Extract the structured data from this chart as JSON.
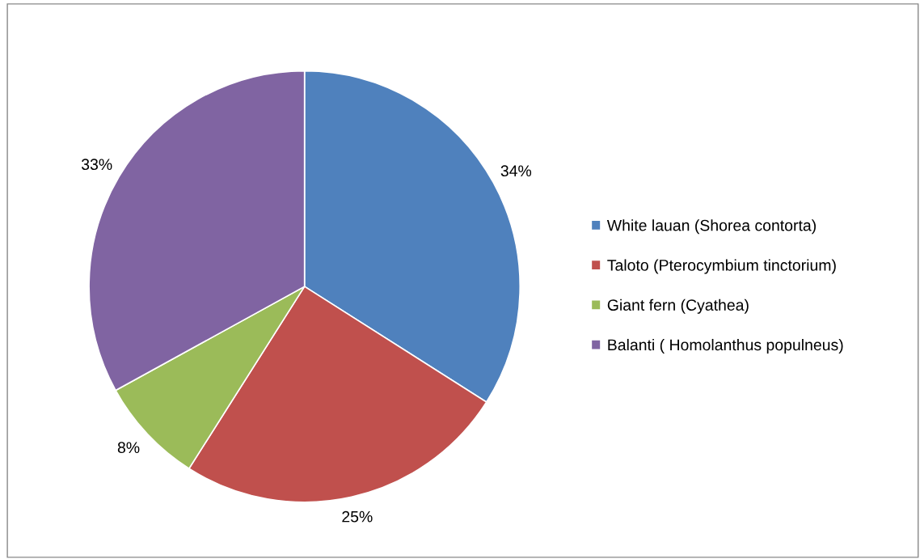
{
  "chart_data": {
    "type": "pie",
    "categories": [
      "White lauan (Shorea contorta)",
      "Taloto (Pterocymbium tinctorium)",
      "Giant fern (Cyathea)",
      "Balanti ( Homolanthus populneus)"
    ],
    "values": [
      34,
      25,
      8,
      33
    ],
    "colors": [
      "#4f81bd",
      "#c0504d",
      "#9bbb59",
      "#8064a2"
    ],
    "value_labels": [
      "34%",
      "25%",
      "8%",
      "33%"
    ],
    "legend": "right"
  }
}
